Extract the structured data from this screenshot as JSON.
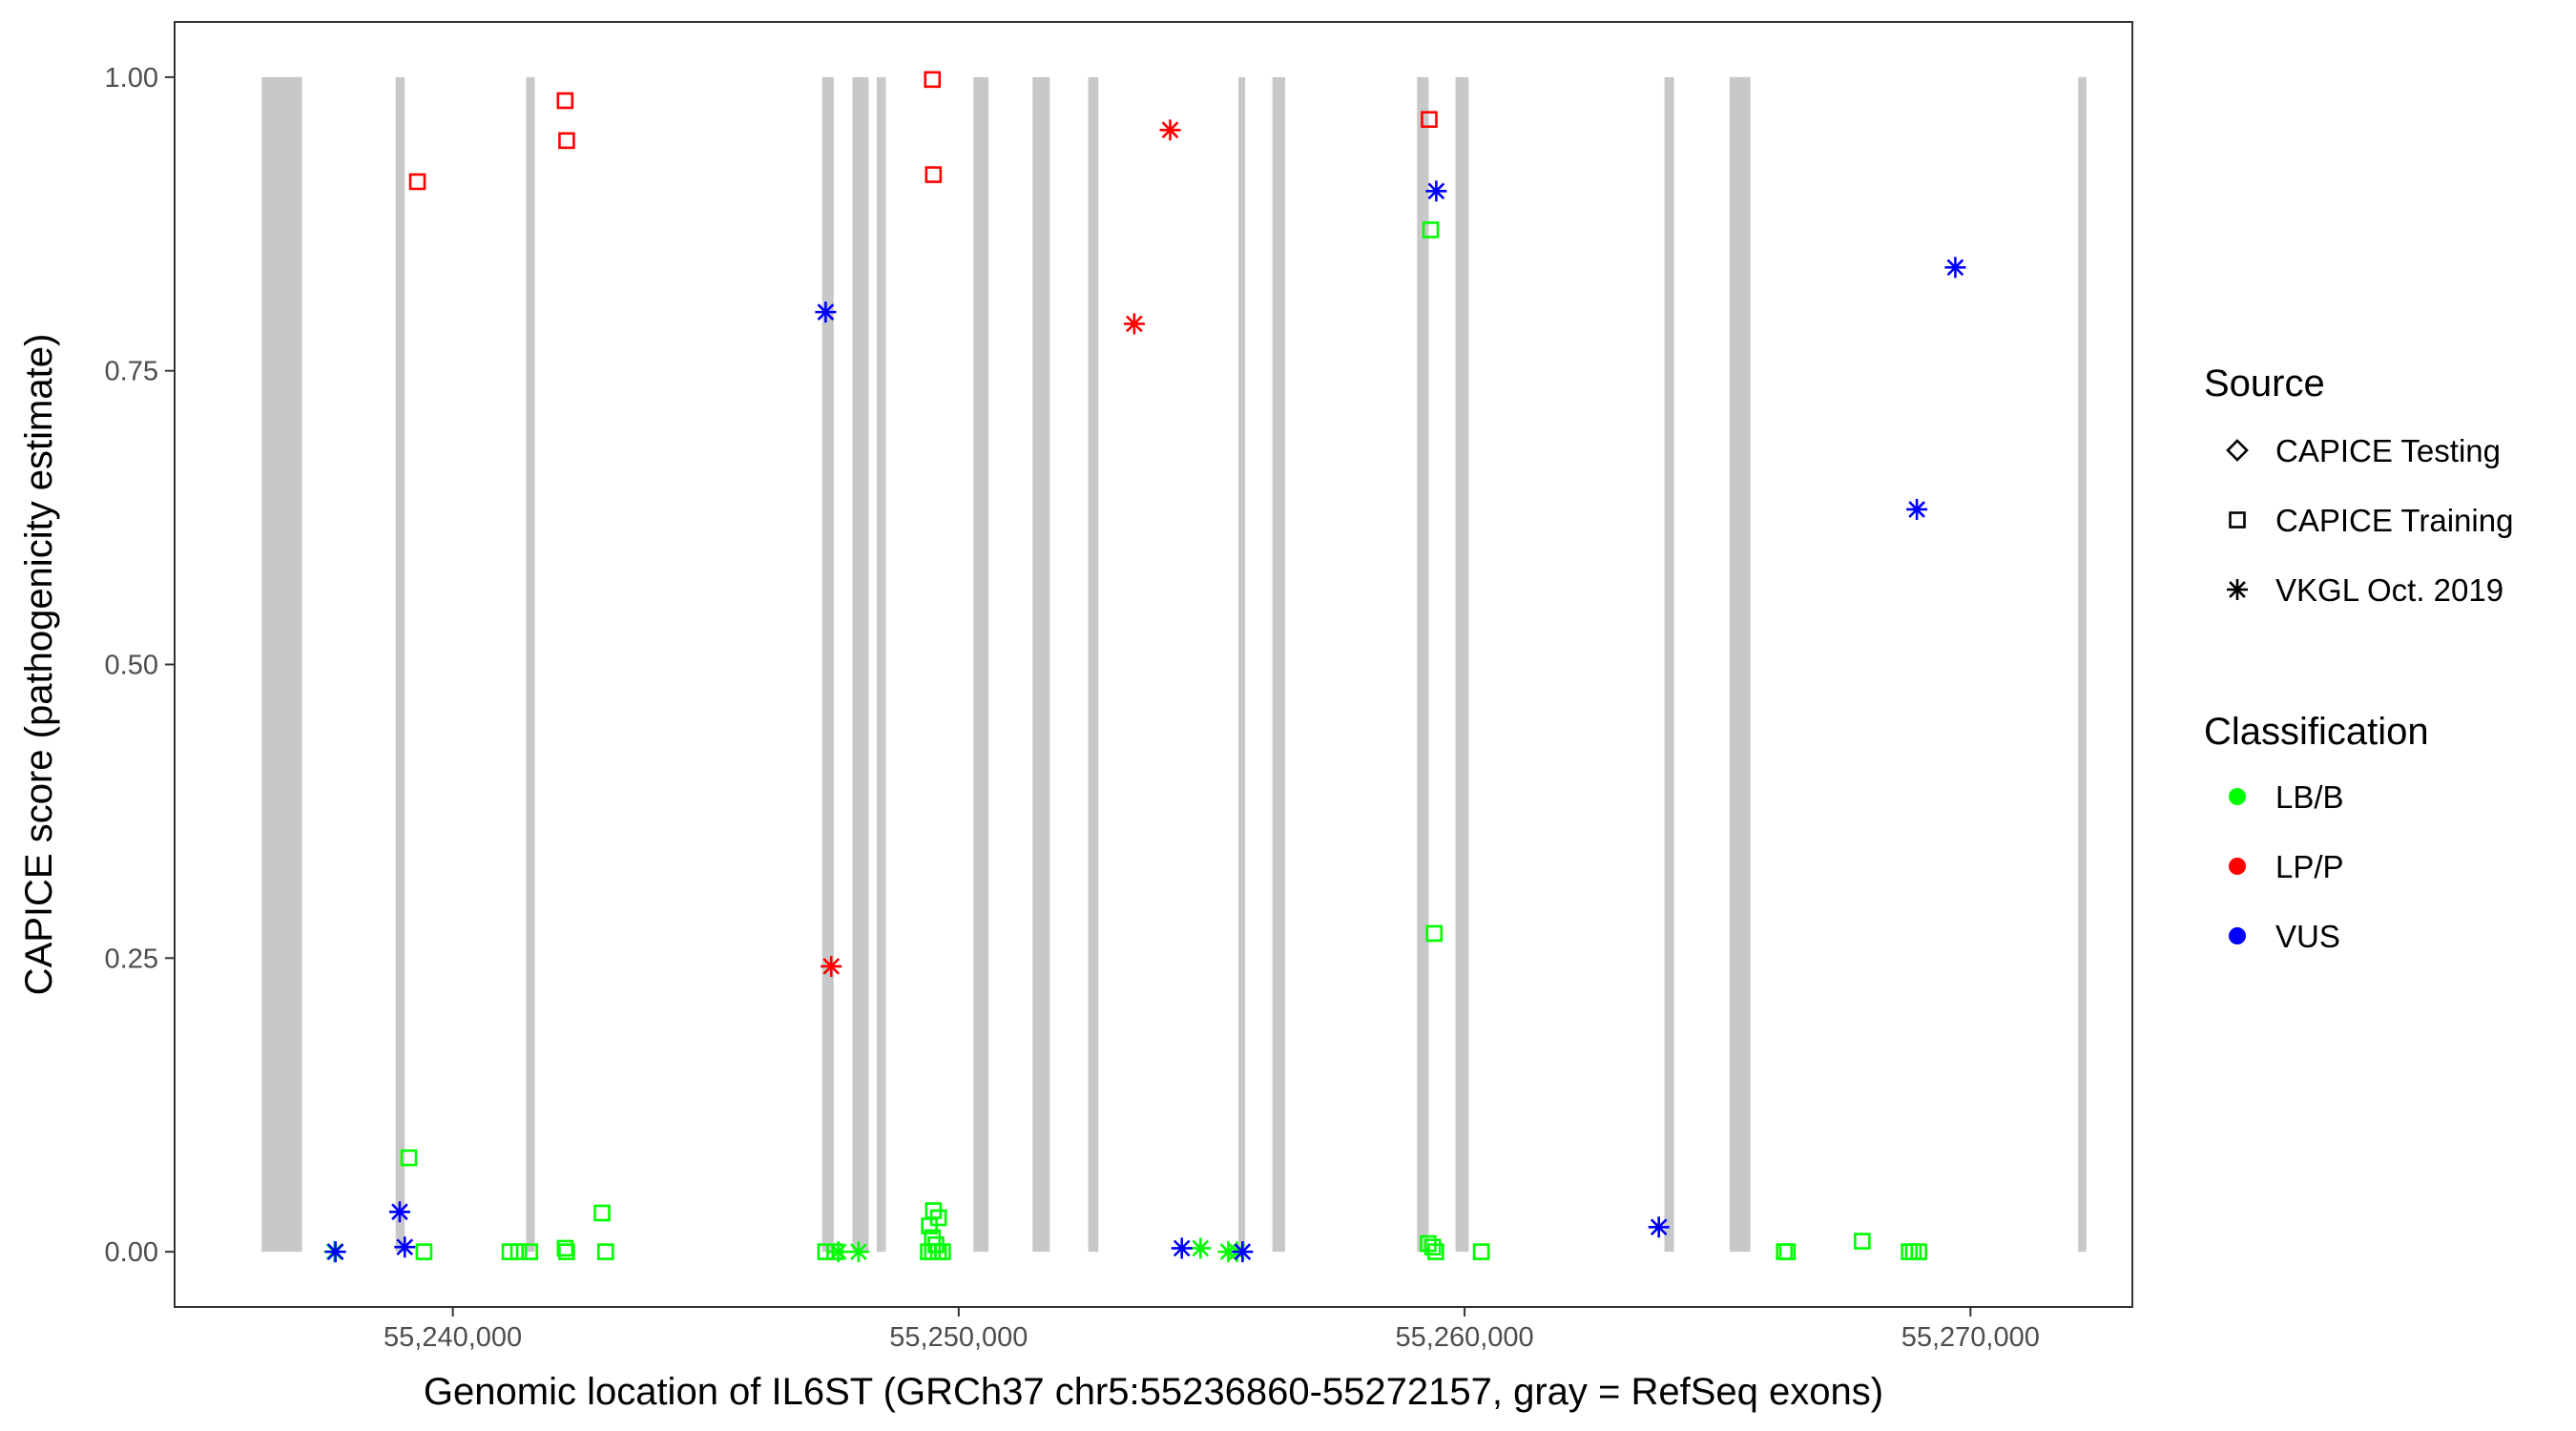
{
  "chart_data": {
    "type": "scatter",
    "title": "",
    "xlabel": "Genomic location of IL6ST (GRCh37 chr5:55236860-55272157, gray = RefSeq exons)",
    "ylabel": "CAPICE score (pathogenicity estimate)",
    "xlim": [
      55234500,
      55273200
    ],
    "ylim": [
      -0.047,
      1.047
    ],
    "x_ticks": [
      55240000,
      55250000,
      55260000,
      55270000
    ],
    "x_tick_labels": [
      "55,240,000",
      "55,250,000",
      "55,260,000",
      "55,270,000"
    ],
    "y_ticks": [
      0,
      0.25,
      0.5,
      0.75,
      1
    ],
    "y_tick_labels": [
      "0.00",
      "0.25",
      "0.50",
      "0.75",
      "1.00"
    ],
    "grid": false,
    "exons": [
      [
        55236220,
        55237020
      ],
      [
        55238870,
        55239050
      ],
      [
        55241450,
        55241620
      ],
      [
        55247300,
        55247530
      ],
      [
        55247900,
        55248220
      ],
      [
        55248380,
        55248560
      ],
      [
        55250290,
        55250590
      ],
      [
        55251460,
        55251800
      ],
      [
        55252560,
        55252760
      ],
      [
        55255530,
        55255660
      ],
      [
        55256200,
        55256450
      ],
      [
        55259060,
        55259290
      ],
      [
        55259820,
        55260080
      ],
      [
        55263950,
        55264140
      ],
      [
        55265240,
        55265650
      ],
      [
        55272130,
        55272290
      ]
    ],
    "legend": {
      "position": "right",
      "source": {
        "title": "Source",
        "entries": [
          {
            "label": "CAPICE Testing",
            "shape": "diamond"
          },
          {
            "label": "CAPICE Training",
            "shape": "square"
          },
          {
            "label": "VKGL Oct. 2019",
            "shape": "asterisk"
          }
        ]
      },
      "classification": {
        "title": "Classification",
        "entries": [
          {
            "label": "LB/B",
            "color": "#00ff00"
          },
          {
            "label": "LP/P",
            "color": "#ff0000"
          },
          {
            "label": "VUS",
            "color": "#0000ff"
          }
        ]
      }
    },
    "series": [
      {
        "source": "CAPICE Training",
        "classification": "LP/P",
        "shape": "square",
        "color": "#ff0000",
        "points": [
          [
            55239300,
            0.911
          ],
          [
            55242220,
            0.98
          ],
          [
            55242250,
            0.946
          ],
          [
            55249480,
            0.998
          ],
          [
            55249500,
            0.917
          ],
          [
            55259300,
            0.964
          ]
        ]
      },
      {
        "source": "CAPICE Training",
        "classification": "LB/B",
        "shape": "square",
        "color": "#00ff00",
        "points": [
          [
            55239130,
            0.08
          ],
          [
            55239430,
            0.0
          ],
          [
            55241130,
            0.0
          ],
          [
            55241300,
            0.0
          ],
          [
            55241520,
            0.0
          ],
          [
            55242220,
            0.003
          ],
          [
            55242250,
            0.0
          ],
          [
            55242950,
            0.033
          ],
          [
            55243020,
            0.0
          ],
          [
            55247370,
            0.0
          ],
          [
            55247550,
            0.0
          ],
          [
            55249500,
            0.035
          ],
          [
            55249600,
            0.029
          ],
          [
            55249420,
            0.022
          ],
          [
            55249480,
            0.012
          ],
          [
            55249550,
            0.006
          ],
          [
            55249480,
            0.0
          ],
          [
            55249600,
            0.0
          ],
          [
            55249680,
            0.0
          ],
          [
            55249400,
            0.0
          ],
          [
            55259280,
            0.007
          ],
          [
            55259370,
            0.004
          ],
          [
            55259430,
            0.0
          ],
          [
            55259330,
            0.87
          ],
          [
            55259400,
            0.271
          ],
          [
            55260330,
            0.0
          ],
          [
            55266320,
            0.0
          ],
          [
            55266380,
            0.0
          ],
          [
            55267860,
            0.009
          ],
          [
            55268790,
            0.0
          ],
          [
            55268870,
            0.0
          ],
          [
            55268980,
            0.0
          ]
        ]
      },
      {
        "source": "VKGL Oct. 2019",
        "classification": "LP/P",
        "shape": "asterisk",
        "color": "#ff0000",
        "points": [
          [
            55247480,
            0.243
          ],
          [
            55253470,
            0.79
          ],
          [
            55254180,
            0.955
          ]
        ]
      },
      {
        "source": "VKGL Oct. 2019",
        "classification": "LB/B",
        "shape": "asterisk",
        "color": "#00ff00",
        "points": [
          [
            55237660,
            0.0
          ],
          [
            55247620,
            0.0
          ],
          [
            55248020,
            0.0
          ],
          [
            55254780,
            0.003
          ],
          [
            55255330,
            0.0
          ],
          [
            55255500,
            0.0
          ]
        ]
      },
      {
        "source": "VKGL Oct. 2019",
        "classification": "VUS",
        "shape": "asterisk",
        "color": "#0000ff",
        "points": [
          [
            55237680,
            0.0
          ],
          [
            55238950,
            0.034
          ],
          [
            55239050,
            0.004
          ],
          [
            55247370,
            0.8
          ],
          [
            55254410,
            0.003
          ],
          [
            55255610,
            0.0
          ],
          [
            55259440,
            0.903
          ],
          [
            55263840,
            0.021
          ],
          [
            55268940,
            0.632
          ],
          [
            55269700,
            0.838
          ]
        ]
      }
    ]
  }
}
